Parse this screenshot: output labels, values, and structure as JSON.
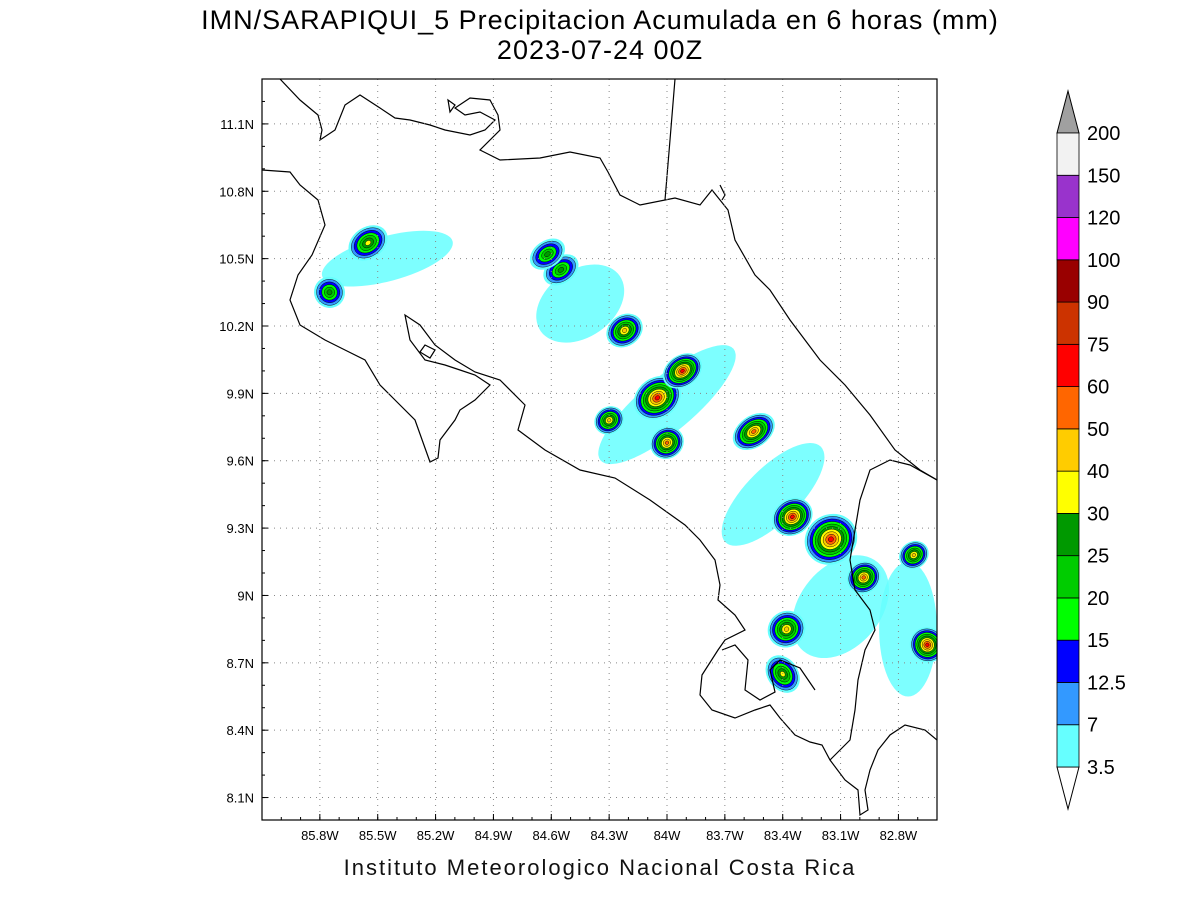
{
  "title": {
    "line1": "IMN/SARAPIQUI_5 Precipitacion Acumulada en 6 horas (mm)",
    "line2": "2023-07-24 00Z"
  },
  "footer": "Instituto Meteorologico Nacional Costa Rica",
  "map": {
    "lon_range": [
      -86.1,
      -82.6
    ],
    "lat_range": [
      8.0,
      11.3
    ],
    "lon_ticks": [
      "85.8W",
      "85.5W",
      "85.2W",
      "84.9W",
      "84.6W",
      "84.3W",
      "84W",
      "83.7W",
      "83.4W",
      "83.1W",
      "82.8W"
    ],
    "lon_tick_values": [
      -85.8,
      -85.5,
      -85.2,
      -84.9,
      -84.6,
      -84.3,
      -84.0,
      -83.7,
      -83.4,
      -83.1,
      -82.8
    ],
    "lat_ticks": [
      "8.1N",
      "8.4N",
      "8.7N",
      "9N",
      "9.3N",
      "9.6N",
      "9.9N",
      "10.2N",
      "10.5N",
      "10.8N",
      "11.1N"
    ],
    "lat_tick_values": [
      8.1,
      8.4,
      8.7,
      9.0,
      9.3,
      9.6,
      9.9,
      10.2,
      10.5,
      10.8,
      11.1
    ],
    "grid": "dotted"
  },
  "colorbar": {
    "labels": [
      "3.5",
      "7",
      "12.5",
      "15",
      "20",
      "25",
      "30",
      "40",
      "50",
      "60",
      "75",
      "90",
      "100",
      "120",
      "150",
      "200"
    ],
    "colors": [
      "#66ffff",
      "#3399ff",
      "#0000ff",
      "#00ff00",
      "#00cc00",
      "#009900",
      "#ffff00",
      "#ffcc00",
      "#ff6600",
      "#ff0000",
      "#cc3300",
      "#990000",
      "#ff00ff",
      "#9933cc",
      "#f2f2f2"
    ],
    "arrow_top_color": "#a0a0a0",
    "arrow_bottom_color": "#ffffff"
  },
  "rain_cells": [
    {
      "lon": -84.05,
      "lat": 9.88,
      "rx": 0.09,
      "ry": 0.06,
      "max": 60
    },
    {
      "lon": -83.92,
      "lat": 10.0,
      "rx": 0.07,
      "ry": 0.04,
      "max": 60
    },
    {
      "lon": -84.0,
      "lat": 9.68,
      "rx": 0.05,
      "ry": 0.04,
      "max": 50
    },
    {
      "lon": -84.3,
      "lat": 9.78,
      "rx": 0.04,
      "ry": 0.03,
      "max": 40
    },
    {
      "lon": -84.22,
      "lat": 10.18,
      "rx": 0.06,
      "ry": 0.04,
      "max": 40
    },
    {
      "lon": -83.55,
      "lat": 9.73,
      "rx": 0.08,
      "ry": 0.04,
      "max": 50
    },
    {
      "lon": -83.15,
      "lat": 9.25,
      "rx": 0.1,
      "ry": 0.08,
      "max": 60
    },
    {
      "lon": -83.35,
      "lat": 9.35,
      "rx": 0.07,
      "ry": 0.05,
      "max": 60
    },
    {
      "lon": -82.98,
      "lat": 9.08,
      "rx": 0.05,
      "ry": 0.04,
      "max": 50
    },
    {
      "lon": -83.38,
      "lat": 8.85,
      "rx": 0.06,
      "ry": 0.05,
      "max": 40
    },
    {
      "lon": -83.4,
      "lat": 8.65,
      "rx": 0.04,
      "ry": 0.06,
      "max": 30
    },
    {
      "lon": -82.65,
      "lat": 8.78,
      "rx": 0.05,
      "ry": 0.05,
      "max": 60
    },
    {
      "lon": -82.72,
      "lat": 9.18,
      "rx": 0.04,
      "ry": 0.03,
      "max": 40
    },
    {
      "lon": -85.55,
      "lat": 10.57,
      "rx": 0.07,
      "ry": 0.04,
      "max": 30
    },
    {
      "lon": -85.75,
      "lat": 10.35,
      "rx": 0.04,
      "ry": 0.04,
      "max": 25
    },
    {
      "lon": -84.55,
      "lat": 10.45,
      "rx": 0.06,
      "ry": 0.03,
      "max": 25
    },
    {
      "lon": -84.62,
      "lat": 10.52,
      "rx": 0.06,
      "ry": 0.03,
      "max": 25
    }
  ]
}
